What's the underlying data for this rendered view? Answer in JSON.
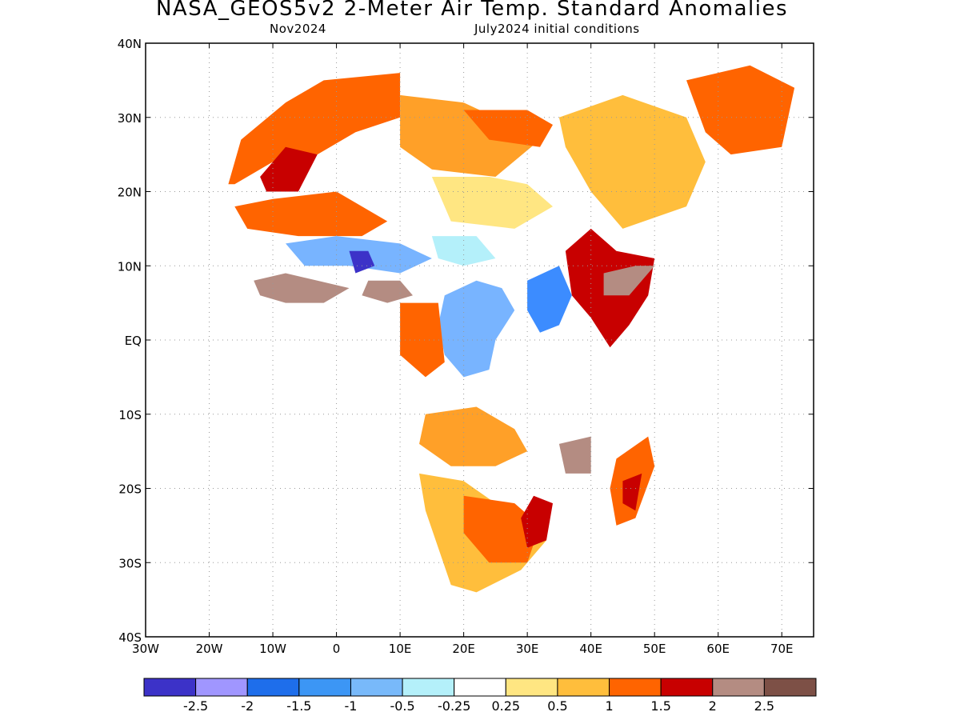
{
  "header": {
    "title": "NASA_GEOS5v2 2-Meter Air Temp. Standard Anomalies",
    "target_month": "Nov2024",
    "initial_conditions": "July2024 initial conditions"
  },
  "map": {
    "region": "Africa",
    "projection": "latitude-longitude",
    "lon_range": [
      -30,
      75
    ],
    "lat_range": [
      -40,
      40
    ],
    "grid": true,
    "lon_ticks": [
      {
        "lon": -30,
        "label": "30W"
      },
      {
        "lon": -20,
        "label": "20W"
      },
      {
        "lon": -10,
        "label": "10W"
      },
      {
        "lon": 0,
        "label": "0"
      },
      {
        "lon": 10,
        "label": "10E"
      },
      {
        "lon": 20,
        "label": "20E"
      },
      {
        "lon": 30,
        "label": "30E"
      },
      {
        "lon": 40,
        "label": "40E"
      },
      {
        "lon": 50,
        "label": "50E"
      },
      {
        "lon": 60,
        "label": "60E"
      },
      {
        "lon": 70,
        "label": "70E"
      }
    ],
    "lat_ticks": [
      {
        "lat": 40,
        "label": "40N"
      },
      {
        "lat": 30,
        "label": "30N"
      },
      {
        "lat": 20,
        "label": "20N"
      },
      {
        "lat": 10,
        "label": "10N"
      },
      {
        "lat": 0,
        "label": "EQ"
      },
      {
        "lat": -10,
        "label": "10S"
      },
      {
        "lat": -20,
        "label": "20S"
      },
      {
        "lat": -30,
        "label": "30S"
      },
      {
        "lat": -40,
        "label": "40S"
      }
    ],
    "land_color": "#ffffff",
    "ocean_color": "#ffffff",
    "anomaly_regions": [
      {
        "lon_lat": [
          [
            -17,
            21
          ],
          [
            -15,
            27
          ],
          [
            -8,
            32
          ],
          [
            -2,
            35
          ],
          [
            10,
            36
          ],
          [
            10,
            30
          ],
          [
            3,
            28
          ],
          [
            -3,
            25
          ],
          [
            -10,
            24
          ],
          [
            -16,
            21
          ]
        ],
        "color": "#ff6400"
      },
      {
        "lon_lat": [
          [
            -12,
            22
          ],
          [
            -8,
            26
          ],
          [
            -3,
            25
          ],
          [
            -6,
            20
          ],
          [
            -11,
            20
          ]
        ],
        "color": "#c80000"
      },
      {
        "lon_lat": [
          [
            10,
            33
          ],
          [
            20,
            32
          ],
          [
            25,
            30
          ],
          [
            30,
            31
          ],
          [
            32,
            27
          ],
          [
            25,
            22
          ],
          [
            15,
            23
          ],
          [
            10,
            26
          ]
        ],
        "color": "#ffa028"
      },
      {
        "lon_lat": [
          [
            20,
            31
          ],
          [
            30,
            31
          ],
          [
            34,
            29
          ],
          [
            32,
            26
          ],
          [
            24,
            27
          ]
        ],
        "color": "#ff6400"
      },
      {
        "lon_lat": [
          [
            -16,
            18
          ],
          [
            -10,
            19
          ],
          [
            0,
            20
          ],
          [
            8,
            16
          ],
          [
            4,
            14
          ],
          [
            -6,
            14
          ],
          [
            -14,
            15
          ]
        ],
        "color": "#ff6400"
      },
      {
        "lon_lat": [
          [
            15,
            22
          ],
          [
            24,
            22
          ],
          [
            30,
            21
          ],
          [
            34,
            18
          ],
          [
            28,
            15
          ],
          [
            18,
            16
          ]
        ],
        "color": "#ffe682"
      },
      {
        "lon_lat": [
          [
            35,
            30
          ],
          [
            45,
            33
          ],
          [
            55,
            30
          ],
          [
            58,
            24
          ],
          [
            55,
            18
          ],
          [
            45,
            15
          ],
          [
            40,
            20
          ],
          [
            36,
            26
          ]
        ],
        "color": "#ffbe3c"
      },
      {
        "lon_lat": [
          [
            55,
            35
          ],
          [
            65,
            37
          ],
          [
            72,
            34
          ],
          [
            70,
            26
          ],
          [
            62,
            25
          ],
          [
            58,
            28
          ]
        ],
        "color": "#ff6400"
      },
      {
        "lon_lat": [
          [
            -8,
            13
          ],
          [
            0,
            14
          ],
          [
            10,
            13
          ],
          [
            15,
            11
          ],
          [
            10,
            9
          ],
          [
            2,
            10
          ],
          [
            -5,
            10
          ]
        ],
        "color": "#78b4ff"
      },
      {
        "lon_lat": [
          [
            2,
            12
          ],
          [
            5,
            12
          ],
          [
            6,
            10
          ],
          [
            3,
            9
          ]
        ],
        "color": "#3c32c8"
      },
      {
        "lon_lat": [
          [
            15,
            14
          ],
          [
            22,
            14
          ],
          [
            25,
            11
          ],
          [
            20,
            10
          ],
          [
            16,
            11
          ]
        ],
        "color": "#b4f0fa"
      },
      {
        "lon_lat": [
          [
            -13,
            8
          ],
          [
            -8,
            9
          ],
          [
            -3,
            8
          ],
          [
            2,
            7
          ],
          [
            -2,
            5
          ],
          [
            -8,
            5
          ],
          [
            -12,
            6
          ]
        ],
        "color": "#b48c82"
      },
      {
        "lon_lat": [
          [
            5,
            8
          ],
          [
            10,
            8
          ],
          [
            12,
            6
          ],
          [
            8,
            5
          ],
          [
            4,
            6
          ]
        ],
        "color": "#b48c82"
      },
      {
        "lon_lat": [
          [
            17,
            6
          ],
          [
            22,
            8
          ],
          [
            26,
            7
          ],
          [
            28,
            4
          ],
          [
            25,
            0
          ],
          [
            24,
            -4
          ],
          [
            20,
            -5
          ],
          [
            17,
            -2
          ],
          [
            16,
            2
          ]
        ],
        "color": "#78b4ff"
      },
      {
        "lon_lat": [
          [
            30,
            8
          ],
          [
            35,
            10
          ],
          [
            37,
            6
          ],
          [
            35,
            2
          ],
          [
            32,
            1
          ],
          [
            30,
            4
          ]
        ],
        "color": "#3c8cff"
      },
      {
        "lon_lat": [
          [
            10,
            5
          ],
          [
            16,
            5
          ],
          [
            17,
            -3
          ],
          [
            14,
            -5
          ],
          [
            10,
            -2
          ]
        ],
        "color": "#ff6400"
      },
      {
        "lon_lat": [
          [
            36,
            12
          ],
          [
            40,
            15
          ],
          [
            44,
            12
          ],
          [
            50,
            11
          ],
          [
            49,
            6
          ],
          [
            46,
            2
          ],
          [
            43,
            -1
          ],
          [
            40,
            3
          ],
          [
            37,
            6
          ]
        ],
        "color": "#c80000"
      },
      {
        "lon_lat": [
          [
            42,
            9
          ],
          [
            47,
            10
          ],
          [
            50,
            10
          ],
          [
            46,
            6
          ],
          [
            42,
            6
          ]
        ],
        "color": "#b48c82"
      },
      {
        "lon_lat": [
          [
            14,
            -10
          ],
          [
            22,
            -9
          ],
          [
            28,
            -12
          ],
          [
            30,
            -15
          ],
          [
            25,
            -17
          ],
          [
            18,
            -17
          ],
          [
            13,
            -14
          ]
        ],
        "color": "#ffa028"
      },
      {
        "lon_lat": [
          [
            13,
            -18
          ],
          [
            20,
            -19
          ],
          [
            25,
            -22
          ],
          [
            30,
            -25
          ],
          [
            33,
            -27
          ],
          [
            29,
            -31
          ],
          [
            22,
            -34
          ],
          [
            18,
            -33
          ],
          [
            16,
            -28
          ],
          [
            14,
            -23
          ]
        ],
        "color": "#ffbe3c"
      },
      {
        "lon_lat": [
          [
            20,
            -21
          ],
          [
            28,
            -22
          ],
          [
            32,
            -25
          ],
          [
            30,
            -30
          ],
          [
            24,
            -30
          ],
          [
            20,
            -26
          ]
        ],
        "color": "#ff6400"
      },
      {
        "lon_lat": [
          [
            31,
            -21
          ],
          [
            34,
            -22
          ],
          [
            33,
            -27
          ],
          [
            30,
            -28
          ],
          [
            29,
            -24
          ]
        ],
        "color": "#c80000"
      },
      {
        "lon_lat": [
          [
            35,
            -14
          ],
          [
            40,
            -13
          ],
          [
            40,
            -18
          ],
          [
            36,
            -18
          ]
        ],
        "color": "#b48c82"
      },
      {
        "lon_lat": [
          [
            44,
            -16
          ],
          [
            49,
            -13
          ],
          [
            50,
            -17
          ],
          [
            47,
            -24
          ],
          [
            44,
            -25
          ],
          [
            43,
            -20
          ]
        ],
        "color": "#ff6400"
      },
      {
        "lon_lat": [
          [
            45,
            -19
          ],
          [
            48,
            -18
          ],
          [
            47,
            -23
          ],
          [
            45,
            -22
          ]
        ],
        "color": "#c80000"
      }
    ]
  },
  "legend": {
    "colors": [
      "#3c32c8",
      "#a096ff",
      "#1e6eeb",
      "#3c96f5",
      "#78b9fa",
      "#b4f0fa",
      "#ffffff",
      "#ffe682",
      "#ffbe3c",
      "#ff6400",
      "#c80000",
      "#b48c82",
      "#7d5046"
    ],
    "labels": [
      "-2.5",
      "-2",
      "-1.5",
      "-1",
      "-0.5",
      "-0.25",
      "0.25",
      "0.5",
      "1",
      "1.5",
      "2",
      "2.5"
    ]
  }
}
